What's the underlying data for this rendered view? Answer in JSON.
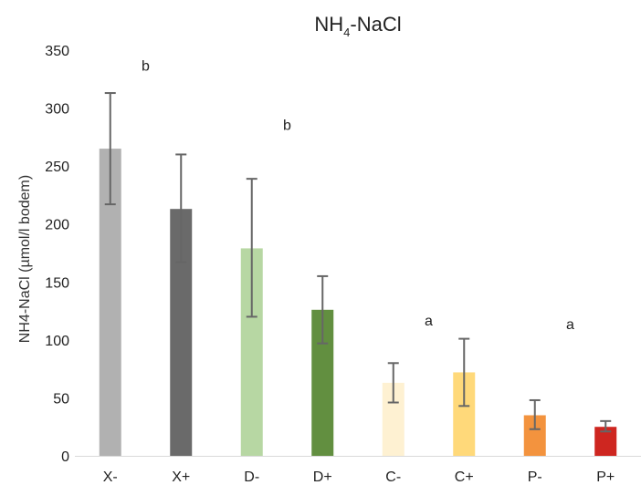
{
  "chart_data": {
    "type": "bar",
    "title": {
      "prefix": "NH",
      "subscript": "4",
      "suffix": "-NaCl"
    },
    "xlabel": "",
    "ylabel": "NH4-NaCl (µmol/l bodem)",
    "ylim": [
      0,
      350
    ],
    "yticks": [
      0,
      50,
      100,
      150,
      200,
      250,
      300,
      350
    ],
    "categories": [
      "X-",
      "X+",
      "D-",
      "D+",
      "C-",
      "C+",
      "P-",
      "P+"
    ],
    "values": [
      265,
      213,
      179,
      126,
      63,
      72,
      35,
      25
    ],
    "error_low": [
      217,
      167,
      120,
      97,
      46,
      43,
      23,
      21
    ],
    "error_high": [
      313,
      260,
      239,
      155,
      80,
      101,
      48,
      30
    ],
    "bar_colors": [
      "#b1b1b1",
      "#6a6a6a",
      "#b7d7a3",
      "#628f40",
      "#fef1d2",
      "#ffd97a",
      "#f3933e",
      "#ce2620"
    ],
    "grid": false,
    "legend": "none",
    "annotations": [
      {
        "text": "b",
        "x_between": [
          "X-",
          "X+"
        ],
        "y": 337
      },
      {
        "text": "b",
        "x_between": [
          "D-",
          "D+"
        ],
        "y": 286
      },
      {
        "text": "a",
        "x_between": [
          "C-",
          "C+"
        ],
        "y": 117
      },
      {
        "text": "a",
        "x_between": [
          "P-",
          "P+"
        ],
        "y": 114
      }
    ],
    "colors": {
      "axis": "#d9d9d9",
      "error_bar": "#666666",
      "text": "#222222"
    }
  }
}
